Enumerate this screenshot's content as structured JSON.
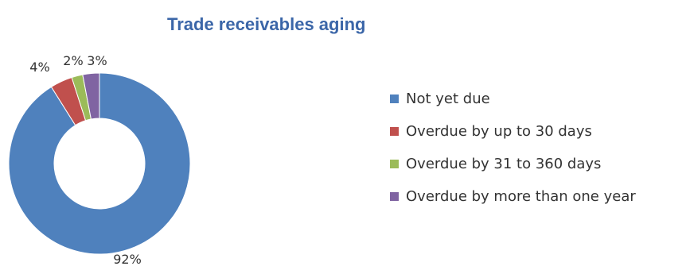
{
  "chart_data": {
    "type": "pie",
    "donut": true,
    "title": "Trade receivables aging",
    "categories": [
      "Not yet due",
      "Overdue by up to 30 days",
      "Overdue by 31 to 360 days",
      "Overdue by more than one year"
    ],
    "values": [
      92,
      4,
      2,
      3
    ],
    "data_labels": [
      "92%",
      "4%",
      "2%",
      "3%"
    ],
    "colors": [
      "#4f81bd",
      "#c0504d",
      "#9bbb59",
      "#8064a2"
    ],
    "legend_position": "right"
  }
}
